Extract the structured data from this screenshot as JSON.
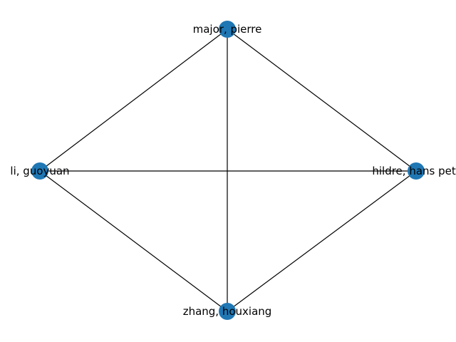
{
  "graph": {
    "node_color": "#1f77b4",
    "edge_color": "#000000",
    "nodes": [
      {
        "id": "major",
        "label": "major, pierre"
      },
      {
        "id": "li",
        "label": "li, guoyuan"
      },
      {
        "id": "hildre",
        "label": "hildre, hans pett"
      },
      {
        "id": "zhang",
        "label": "zhang, houxiang"
      }
    ],
    "edges": [
      [
        "major",
        "li"
      ],
      [
        "major",
        "hildre"
      ],
      [
        "major",
        "zhang"
      ],
      [
        "li",
        "hildre"
      ],
      [
        "li",
        "zhang"
      ],
      [
        "hildre",
        "zhang"
      ]
    ]
  }
}
